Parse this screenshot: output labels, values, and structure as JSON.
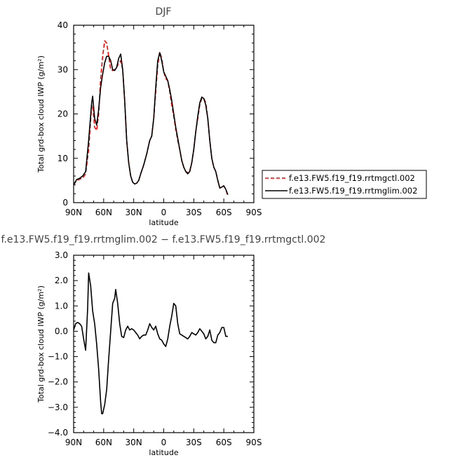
{
  "chart_data": [
    {
      "type": "line",
      "title": "DJF",
      "xlabel": "latitude",
      "ylabel": "Total grd-box cloud IWP (g/m²)",
      "xlim": [
        90,
        -90
      ],
      "ylim": [
        0,
        40
      ],
      "xticks": [
        90,
        60,
        30,
        0,
        -30,
        -60,
        -90
      ],
      "xtick_labels": [
        "90N",
        "60N",
        "30N",
        "0",
        "30S",
        "60S",
        "90S"
      ],
      "yticks": [
        0,
        10,
        20,
        30,
        40
      ],
      "ytick_labels": [
        "0",
        "10",
        "20",
        "30",
        "40"
      ],
      "grid": false,
      "legend_position": "right",
      "series": [
        {
          "name": "f.e13.FW5.f19_f19.rrtmgctl.002",
          "color": "#ff0000",
          "dash": true,
          "points": [
            [
              90,
              4
            ],
            [
              87,
              5
            ],
            [
              84,
              5.3
            ],
            [
              81,
              5.5
            ],
            [
              78,
              6.5
            ],
            [
              75,
              12
            ],
            [
              72,
              21.8
            ],
            [
              71,
              22
            ],
            [
              69,
              17
            ],
            [
              67,
              16.3
            ],
            [
              65,
              20
            ],
            [
              63,
              28
            ],
            [
              61,
              33
            ],
            [
              59,
              36.5
            ],
            [
              57,
              36
            ],
            [
              55,
              33
            ],
            [
              53,
              30
            ],
            [
              51,
              29.8
            ],
            [
              49,
              30
            ],
            [
              47,
              30.5
            ],
            [
              45,
              31.5
            ],
            [
              43,
              32
            ],
            [
              41,
              30
            ],
            [
              39,
              23
            ],
            [
              37,
              14
            ],
            [
              35,
              9
            ],
            [
              33,
              6
            ],
            [
              31,
              4.6
            ],
            [
              29,
              4.2
            ],
            [
              27,
              4.4
            ],
            [
              25,
              5
            ],
            [
              23,
              6.5
            ],
            [
              20,
              8.5
            ],
            [
              17,
              11
            ],
            [
              14,
              14
            ],
            [
              12,
              15
            ],
            [
              10,
              19
            ],
            [
              8,
              25
            ],
            [
              6,
              31
            ],
            [
              4,
              34
            ],
            [
              2,
              32.5
            ],
            [
              0,
              29.5
            ],
            [
              -2,
              28
            ],
            [
              -4,
              27.5
            ],
            [
              -6,
              25
            ],
            [
              -8,
              22
            ],
            [
              -10,
              19.5
            ],
            [
              -12,
              16.5
            ],
            [
              -14,
              14
            ],
            [
              -16,
              12
            ],
            [
              -18,
              9.5
            ],
            [
              -20,
              8
            ],
            [
              -22,
              7
            ],
            [
              -24,
              6.8
            ],
            [
              -26,
              7.2
            ],
            [
              -28,
              9
            ],
            [
              -30,
              12
            ],
            [
              -32,
              16
            ],
            [
              -34,
              19
            ],
            [
              -36,
              22
            ],
            [
              -38,
              23.5
            ],
            [
              -40,
              23.5
            ],
            [
              -42,
              22.5
            ],
            [
              -44,
              19
            ],
            [
              -46,
              14
            ],
            [
              -48,
              10
            ],
            [
              -50,
              8
            ],
            [
              -52,
              7
            ],
            [
              -54,
              5
            ],
            [
              -56,
              3.3
            ],
            [
              -58,
              3.5
            ],
            [
              -60,
              3.8
            ],
            [
              -62,
              3
            ],
            [
              -64,
              1.5
            ]
          ]
        },
        {
          "name": "f.e13.FW5.f19_f19.rrtmglim.002",
          "color": "#000000",
          "dash": false,
          "points": [
            [
              90,
              4
            ],
            [
              87,
              5.2
            ],
            [
              84,
              5.5
            ],
            [
              81,
              6
            ],
            [
              78,
              7
            ],
            [
              75,
              14
            ],
            [
              72,
              22.5
            ],
            [
              71,
              24
            ],
            [
              69,
              19
            ],
            [
              67,
              17.5
            ],
            [
              65,
              21
            ],
            [
              63,
              26
            ],
            [
              61,
              29
            ],
            [
              59,
              31.5
            ],
            [
              57,
              33
            ],
            [
              55,
              33
            ],
            [
              53,
              32
            ],
            [
              51,
              30
            ],
            [
              49,
              29.8
            ],
            [
              47,
              30.5
            ],
            [
              45,
              32.5
            ],
            [
              43,
              33.5
            ],
            [
              41,
              30
            ],
            [
              39,
              23
            ],
            [
              37,
              14
            ],
            [
              35,
              9
            ],
            [
              33,
              6
            ],
            [
              31,
              4.6
            ],
            [
              29,
              4.2
            ],
            [
              27,
              4.4
            ],
            [
              25,
              5
            ],
            [
              23,
              6.5
            ],
            [
              20,
              8.5
            ],
            [
              17,
              11
            ],
            [
              14,
              14
            ],
            [
              12,
              15
            ],
            [
              10,
              19
            ],
            [
              8,
              26
            ],
            [
              6,
              32
            ],
            [
              4,
              33.8
            ],
            [
              2,
              32
            ],
            [
              0,
              29.5
            ],
            [
              -2,
              28.5
            ],
            [
              -4,
              27.5
            ],
            [
              -6,
              25.5
            ],
            [
              -8,
              23
            ],
            [
              -10,
              20
            ],
            [
              -12,
              17
            ],
            [
              -14,
              14.5
            ],
            [
              -16,
              12
            ],
            [
              -18,
              9.5
            ],
            [
              -20,
              8
            ],
            [
              -22,
              7
            ],
            [
              -24,
              6.5
            ],
            [
              -26,
              7
            ],
            [
              -28,
              9
            ],
            [
              -30,
              12
            ],
            [
              -32,
              16
            ],
            [
              -34,
              19.5
            ],
            [
              -36,
              22.5
            ],
            [
              -38,
              23.8
            ],
            [
              -40,
              23.5
            ],
            [
              -42,
              22
            ],
            [
              -44,
              19
            ],
            [
              -46,
              14
            ],
            [
              -48,
              10
            ],
            [
              -50,
              8
            ],
            [
              -52,
              7
            ],
            [
              -54,
              5
            ],
            [
              -56,
              3.3
            ],
            [
              -58,
              3.5
            ],
            [
              -60,
              3.8
            ],
            [
              -62,
              3
            ],
            [
              -64,
              1.8
            ]
          ]
        }
      ]
    },
    {
      "type": "line",
      "title": "f.e13.FW5.f19_f19.rrtmglim.002 − f.e13.FW5.f19_f19.rrtmgctl.002",
      "xlabel": "latitude",
      "ylabel": "Total grd-box cloud IWP (g/m²)",
      "xlim": [
        90,
        -90
      ],
      "ylim": [
        -4,
        3
      ],
      "xticks": [
        90,
        60,
        30,
        0,
        -30,
        -60,
        -90
      ],
      "xtick_labels": [
        "90N",
        "60N",
        "30N",
        "0",
        "30S",
        "60S",
        "90S"
      ],
      "yticks": [
        -4,
        -3,
        -2,
        -1,
        0,
        1,
        2,
        3
      ],
      "ytick_labels": [
        "−4.0",
        "−3.0",
        "−2.0",
        "−1.0",
        "0.0",
        "1.0",
        "2.0",
        "3.0"
      ],
      "grid": false,
      "series": [
        {
          "color": "#000000",
          "dash": false,
          "points": [
            [
              90,
              0.05
            ],
            [
              88,
              0.3
            ],
            [
              86,
              0.35
            ],
            [
              84,
              0.3
            ],
            [
              82,
              0.2
            ],
            [
              80,
              -0.3
            ],
            [
              78,
              -0.75
            ],
            [
              76,
              0.9
            ],
            [
              75,
              2.3
            ],
            [
              73,
              1.8
            ],
            [
              71,
              0.8
            ],
            [
              69,
              0.3
            ],
            [
              67,
              -0.5
            ],
            [
              65,
              -1.5
            ],
            [
              63,
              -2.8
            ],
            [
              62,
              -3.25
            ],
            [
              61,
              -3.25
            ],
            [
              59,
              -2.9
            ],
            [
              57,
              -2.3
            ],
            [
              55,
              -1.1
            ],
            [
              53,
              0
            ],
            [
              51,
              1.1
            ],
            [
              49,
              1.3
            ],
            [
              48,
              1.65
            ],
            [
              46,
              1.1
            ],
            [
              44,
              0.3
            ],
            [
              42,
              -0.2
            ],
            [
              40,
              -0.25
            ],
            [
              38,
              0.05
            ],
            [
              36,
              0.2
            ],
            [
              34,
              0.05
            ],
            [
              32,
              0.1
            ],
            [
              30,
              0.05
            ],
            [
              28,
              -0.05
            ],
            [
              26,
              -0.15
            ],
            [
              24,
              -0.3
            ],
            [
              22,
              -0.2
            ],
            [
              20,
              -0.15
            ],
            [
              18,
              -0.15
            ],
            [
              16,
              0.05
            ],
            [
              14,
              0.3
            ],
            [
              12,
              0.15
            ],
            [
              10,
              0.05
            ],
            [
              8,
              0.2
            ],
            [
              6,
              -0.1
            ],
            [
              4,
              -0.3
            ],
            [
              2,
              -0.35
            ],
            [
              0,
              -0.5
            ],
            [
              -2,
              -0.6
            ],
            [
              -4,
              -0.3
            ],
            [
              -6,
              0.2
            ],
            [
              -8,
              0.6
            ],
            [
              -10,
              1.1
            ],
            [
              -12,
              1.0
            ],
            [
              -14,
              0.3
            ],
            [
              -16,
              -0.1
            ],
            [
              -18,
              -0.15
            ],
            [
              -20,
              -0.2
            ],
            [
              -22,
              -0.25
            ],
            [
              -24,
              -0.3
            ],
            [
              -26,
              -0.2
            ],
            [
              -28,
              -0.05
            ],
            [
              -30,
              -0.1
            ],
            [
              -32,
              -0.15
            ],
            [
              -34,
              -0.05
            ],
            [
              -36,
              0.1
            ],
            [
              -38,
              0
            ],
            [
              -40,
              -0.1
            ],
            [
              -42,
              -0.3
            ],
            [
              -44,
              -0.2
            ],
            [
              -46,
              0.05
            ],
            [
              -48,
              -0.35
            ],
            [
              -50,
              -0.45
            ],
            [
              -52,
              -0.45
            ],
            [
              -54,
              -0.15
            ],
            [
              -56,
              -0.05
            ],
            [
              -58,
              0.15
            ],
            [
              -60,
              0.15
            ],
            [
              -62,
              -0.2
            ],
            [
              -64,
              -0.2
            ]
          ]
        }
      ]
    }
  ]
}
